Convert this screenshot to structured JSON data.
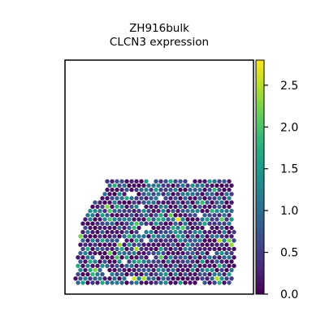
{
  "chart_data": {
    "type": "scatter",
    "title": [
      "ZH916bulk",
      "CLCN3 expression"
    ],
    "xlabel": "",
    "ylabel": "",
    "grid": false,
    "colormap": "viridis",
    "colorbar": {
      "location": "right",
      "range": [
        0.0,
        2.8
      ],
      "ticks": [
        0.0,
        0.5,
        1.0,
        1.5,
        2.0,
        2.5
      ],
      "tick_labels": [
        "0.0",
        "0.5",
        "1.0",
        "1.5",
        "2.0",
        "2.5"
      ]
    },
    "value_distribution": {
      "description": "spatial hexagonal spot grid, values mostly 0.0-1.3 with sparse high spots up to ~2.7",
      "max": 2.7
    },
    "colors": {
      "viridis_stops": [
        "#440154",
        "#482878",
        "#3e4989",
        "#31688e",
        "#26828e",
        "#1f9e89",
        "#35b779",
        "#6ece58",
        "#b5de2b",
        "#fde725"
      ]
    }
  }
}
